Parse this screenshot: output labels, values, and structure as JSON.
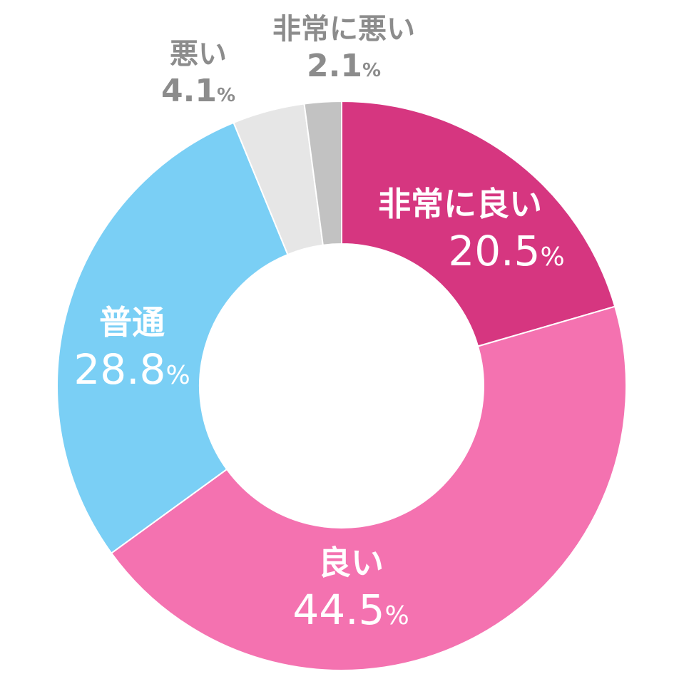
{
  "chart_data": {
    "type": "pie",
    "subtype": "donut",
    "title": "",
    "unit": "%",
    "start": "top, clockwise",
    "categories": [
      "非常に良い",
      "良い",
      "普通",
      "悪い",
      "非常に悪い"
    ],
    "values": [
      20.5,
      44.5,
      28.8,
      4.1,
      2.1
    ],
    "value_labels": [
      "20.5",
      "44.5",
      "28.8",
      "4.1",
      "2.1"
    ],
    "colors": [
      "#d63680",
      "#f472b0",
      "#7acff5",
      "#e6e6e6",
      "#c2c2c2"
    ],
    "label_colors": [
      "#ffffff",
      "#ffffff",
      "#ffffff",
      "#8c8c8c",
      "#8c8c8c"
    ]
  }
}
